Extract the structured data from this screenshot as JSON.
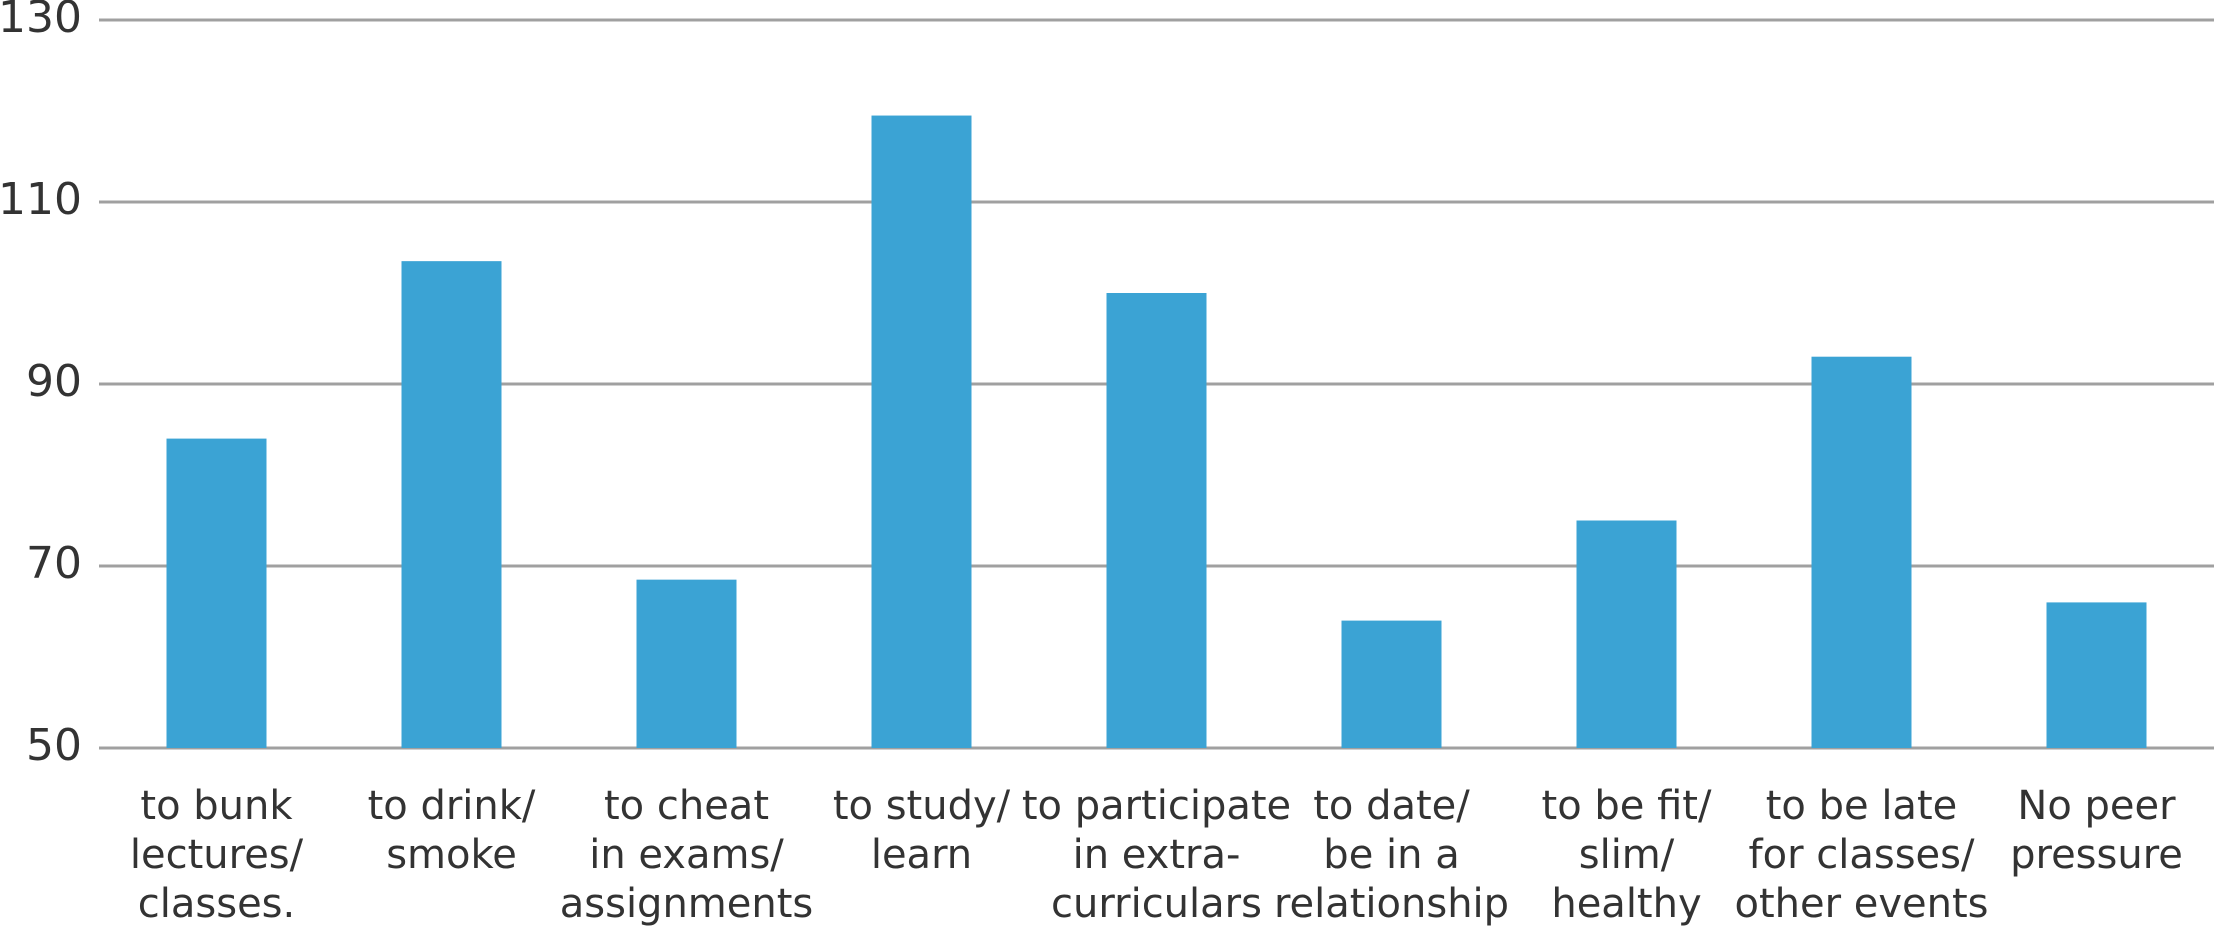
{
  "chart_data": {
    "type": "bar",
    "categories": [
      [
        "to bunk",
        "lectures/",
        "classes."
      ],
      [
        "to drink/",
        "smoke"
      ],
      [
        "to cheat",
        "in exams/",
        "assignments"
      ],
      [
        "to study/",
        "learn"
      ],
      [
        "to participate",
        "in extra-",
        "curriculars"
      ],
      [
        "to date/",
        "be in a",
        "relationship"
      ],
      [
        "to be fit/",
        "slim/",
        "healthy"
      ],
      [
        "to be late",
        "for classes/",
        "other events"
      ],
      [
        "No peer",
        "pressure"
      ]
    ],
    "values": [
      84,
      103.5,
      68.5,
      119.5,
      100,
      64,
      75,
      93,
      66
    ],
    "color": "#3ba3d4",
    "ylim": [
      50,
      130
    ],
    "yticks": [
      50,
      70,
      90,
      110,
      130
    ],
    "grid": true
  }
}
